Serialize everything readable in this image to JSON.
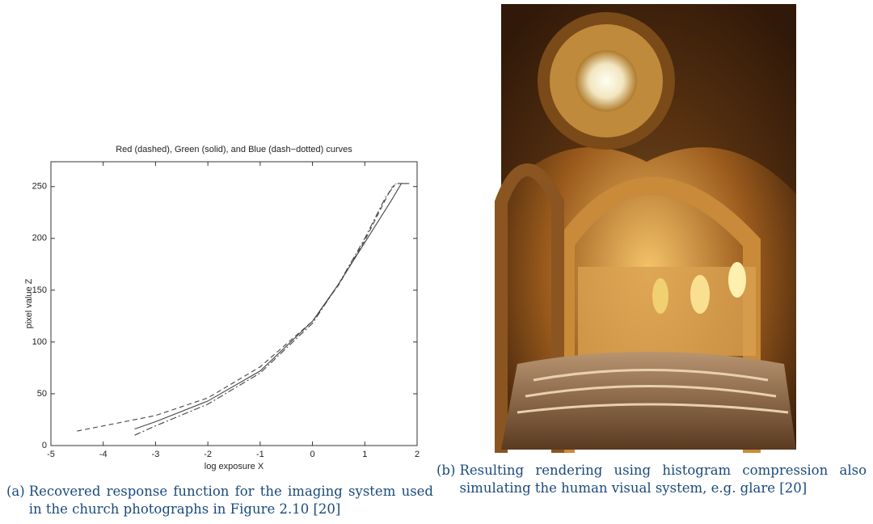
{
  "chart_data": {
    "type": "line",
    "title": "Red (dashed), Green (solid), and Blue (dash−dotted) curves",
    "xlabel": "log exposure X",
    "ylabel": "pixel value Z",
    "xlim": [
      -5,
      2
    ],
    "xticks": [
      -5,
      -4,
      -3,
      -2,
      -1,
      0,
      1,
      2
    ],
    "ylim": [
      0,
      274
    ],
    "yticks": [
      0,
      50,
      100,
      150,
      200,
      250
    ],
    "series": [
      {
        "color": "#444444",
        "dash": "dashed",
        "x": [
          -4.5,
          -4,
          -3,
          -2,
          -1,
          0,
          0.5,
          1,
          1.5,
          1.6,
          1.8
        ],
        "values": [
          14,
          19,
          29,
          46,
          76,
          120,
          155,
          198,
          248,
          253,
          253
        ]
      },
      {
        "color": "#444444",
        "dash": "solid",
        "x": [
          -3.4,
          -3,
          -2,
          -1,
          0,
          0.5,
          1,
          1.5,
          1.7,
          1.85
        ],
        "values": [
          16,
          23,
          43,
          72,
          120,
          156,
          196,
          236,
          253,
          253
        ]
      },
      {
        "color": "#444444",
        "dash": "dash-dot",
        "x": [
          -3.4,
          -3,
          -2,
          -1,
          0,
          0.5,
          1,
          1.4,
          1.6
        ],
        "values": [
          10,
          19,
          40,
          70,
          118,
          156,
          200,
          240,
          253
        ]
      }
    ]
  },
  "captions": {
    "a": {
      "label": "(a)",
      "text": "Recovered response function for the imaging system used in the church photographs in Figure 2.10 [20]"
    },
    "b": {
      "label": "(b)",
      "text": "Resulting rendering using histogram compression also simulating the human visual system, e.g. glare [20]"
    }
  }
}
